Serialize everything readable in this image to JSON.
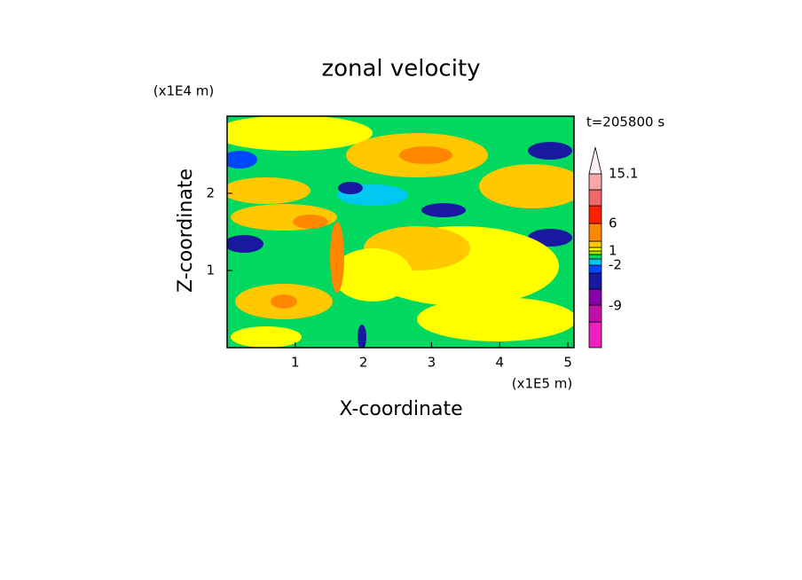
{
  "chart_data": {
    "type": "contour",
    "title": "zonal velocity",
    "x_label": "X-coordinate",
    "y_label": "Z-coordinate",
    "x_unit": "(x1E5 m)",
    "y_unit": "(x1E4 m)",
    "annotation": "t=205800 s",
    "xlim": [
      0,
      5.09
    ],
    "xticks": [
      1,
      2,
      3,
      4,
      5
    ],
    "ylim": [
      0,
      3
    ],
    "yticks": [
      1,
      2
    ],
    "colorbar_colors": [
      "#f020c0",
      "#c010a8",
      "#8800a8",
      "#1818a0",
      "#0048ff",
      "#00c8f0",
      "#00d860",
      "#a8e000",
      "#ffff00",
      "#ffc800",
      "#ff8800",
      "#ff2000",
      "#f06868",
      "#f8a8a8",
      "#fff0f0"
    ],
    "colorbar_labels": [
      15.1,
      6,
      1,
      -2,
      -9
    ]
  }
}
